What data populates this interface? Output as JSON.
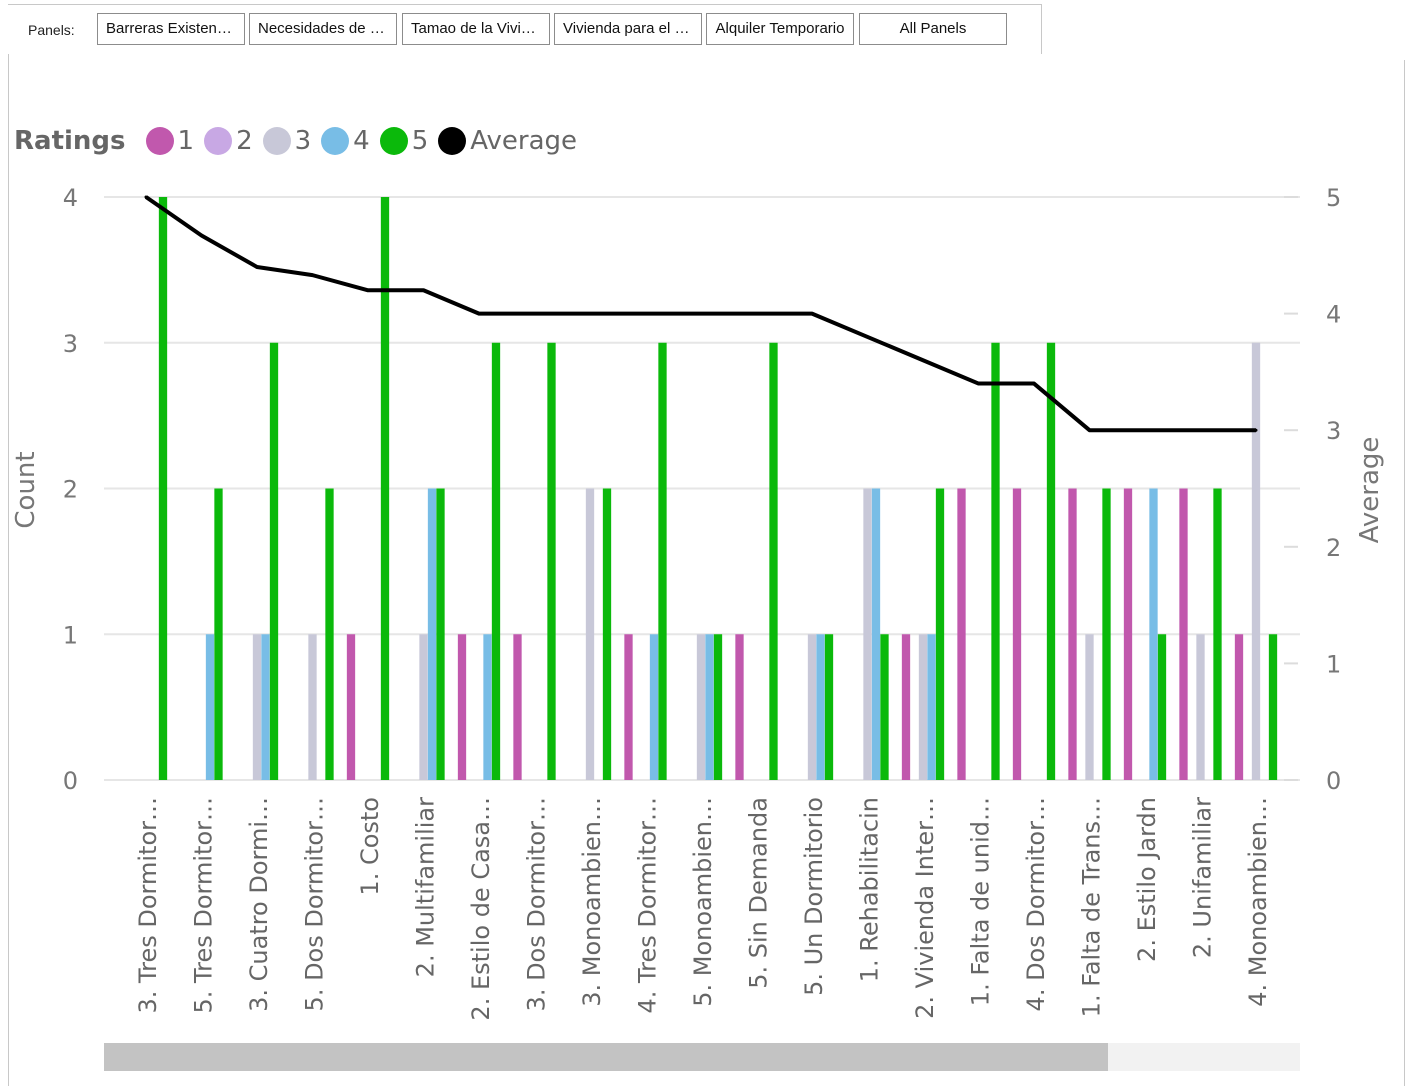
{
  "panels": {
    "label": "Panels:",
    "buttons": [
      {
        "label": "Barreras Existentes"
      },
      {
        "label": "Necesidades de Vivienda"
      },
      {
        "label": "Tamao de la Vivienda"
      },
      {
        "label": "Vivienda para el Futuro"
      },
      {
        "label": "Alquiler Temporario"
      },
      {
        "label": "All Panels"
      }
    ]
  },
  "legend": {
    "title": "Ratings",
    "items": [
      {
        "label": "1",
        "color": "#c158ad"
      },
      {
        "label": "2",
        "color": "#c8a8e4"
      },
      {
        "label": "3",
        "color": "#c8c8d8"
      },
      {
        "label": "4",
        "color": "#78bde6"
      },
      {
        "label": "5",
        "color": "#0bb90b"
      },
      {
        "label": "Average",
        "color": "#000000"
      }
    ]
  },
  "chart_data": {
    "type": "bar",
    "title": "",
    "ylabel": "Count",
    "y2label": "Average",
    "ylim": [
      0,
      4
    ],
    "y2lim": [
      0,
      5
    ],
    "yticks": [
      0,
      1,
      2,
      3,
      4
    ],
    "y2ticks": [
      0,
      1,
      2,
      3,
      4,
      5
    ],
    "grid": true,
    "legend_position": "top-left",
    "categories": [
      "3. Tres Dormitor…",
      "5. Tres Dormitor…",
      "3. Cuatro Dormi…",
      "5. Dos Dormitor…",
      "1. Costo",
      "2. Multifamiliar",
      "2. Estilo de Casa…",
      "3. Dos Dormitor…",
      "3. Monoambien…",
      "4. Tres Dormitor…",
      "5. Monoambien…",
      "5. Sin Demanda",
      "5. Un Dormitorio",
      "1. Rehabilitacin",
      "2. Vivienda Inter…",
      "1. Falta de unid…",
      "4. Dos Dormitor…",
      "1. Falta de Trans…",
      "2. Estilo Jardn",
      "2. Unifamiliar",
      "4. Monoambien…"
    ],
    "series": [
      {
        "name": "1",
        "values": [
          0,
          0,
          0,
          0,
          1,
          0,
          1,
          1,
          0,
          1,
          0,
          1,
          0,
          0,
          1,
          2,
          2,
          2,
          2,
          2,
          1
        ]
      },
      {
        "name": "2",
        "values": [
          0,
          0,
          0,
          0,
          0,
          0,
          0,
          0,
          0,
          0,
          0,
          0,
          0,
          0,
          0,
          0,
          0,
          0,
          0,
          0,
          0
        ]
      },
      {
        "name": "3",
        "values": [
          0,
          0,
          1,
          1,
          0,
          1,
          0,
          0,
          2,
          0,
          1,
          0,
          1,
          2,
          1,
          0,
          0,
          1,
          0,
          1,
          3
        ]
      },
      {
        "name": "4",
        "values": [
          0,
          1,
          1,
          0,
          0,
          2,
          1,
          0,
          0,
          1,
          1,
          0,
          1,
          2,
          1,
          0,
          0,
          0,
          2,
          0,
          0
        ]
      },
      {
        "name": "5",
        "values": [
          4,
          2,
          3,
          2,
          4,
          2,
          3,
          3,
          2,
          3,
          1,
          3,
          1,
          1,
          2,
          3,
          3,
          2,
          1,
          2,
          1
        ]
      },
      {
        "name": "Average",
        "axis": "secondary",
        "type": "line",
        "values": [
          5,
          4.67,
          4.4,
          4.33,
          4.2,
          4.2,
          4,
          4,
          4,
          4,
          4,
          4,
          4,
          3.8,
          3.6,
          3.4,
          3.4,
          3,
          3,
          3,
          3
        ]
      }
    ]
  }
}
